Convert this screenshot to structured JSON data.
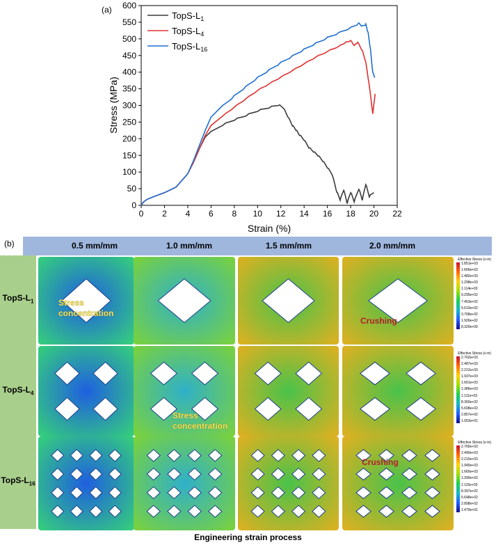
{
  "panel_a_label": "(a)",
  "panel_b_label": "(b)",
  "chart_data": {
    "type": "line",
    "title": "",
    "xlabel": "Strain (%)",
    "ylabel": "Stress (MPa)",
    "xlim": [
      0,
      22
    ],
    "ylim": [
      0,
      600
    ],
    "xticks": [
      0,
      2,
      4,
      6,
      8,
      10,
      12,
      14,
      16,
      18,
      20,
      22
    ],
    "yticks": [
      0,
      50,
      100,
      150,
      200,
      250,
      300,
      350,
      400,
      450,
      500,
      550,
      600
    ],
    "grid": false,
    "legend_position": "top-left",
    "series": [
      {
        "name": "TopS-L1",
        "legend_base": "TopS-L",
        "legend_sub": "1",
        "color": "#3a3a3a",
        "points": [
          [
            0,
            0
          ],
          [
            0.2,
            10
          ],
          [
            0.5,
            18
          ],
          [
            1,
            25
          ],
          [
            2,
            38
          ],
          [
            3,
            55
          ],
          [
            4,
            95
          ],
          [
            4.5,
            130
          ],
          [
            5,
            170
          ],
          [
            5.5,
            205
          ],
          [
            6,
            222
          ],
          [
            7,
            240
          ],
          [
            8,
            255
          ],
          [
            9,
            268
          ],
          [
            10,
            282
          ],
          [
            11,
            292
          ],
          [
            11.8,
            300
          ],
          [
            12.2,
            292
          ],
          [
            12.6,
            265
          ],
          [
            13,
            238
          ],
          [
            13.3,
            225
          ],
          [
            13.6,
            210
          ],
          [
            14,
            195
          ],
          [
            14.4,
            172
          ],
          [
            14.8,
            160
          ],
          [
            15.2,
            148
          ],
          [
            15.6,
            132
          ],
          [
            16,
            112
          ],
          [
            16.4,
            92
          ],
          [
            16.8,
            40
          ],
          [
            17.1,
            15
          ],
          [
            17.4,
            45
          ],
          [
            17.7,
            5
          ],
          [
            18,
            38
          ],
          [
            18.3,
            10
          ],
          [
            18.7,
            48
          ],
          [
            19,
            15
          ],
          [
            19.3,
            62
          ],
          [
            19.6,
            25
          ],
          [
            20,
            38
          ]
        ]
      },
      {
        "name": "TopS-L4",
        "legend_base": "TopS-L",
        "legend_sub": "4",
        "color": "#e03030",
        "points": [
          [
            0,
            0
          ],
          [
            0.2,
            10
          ],
          [
            0.5,
            18
          ],
          [
            1,
            25
          ],
          [
            2,
            38
          ],
          [
            3,
            55
          ],
          [
            4,
            95
          ],
          [
            4.5,
            130
          ],
          [
            5,
            170
          ],
          [
            5.5,
            210
          ],
          [
            6,
            240
          ],
          [
            7,
            268
          ],
          [
            8,
            295
          ],
          [
            9,
            320
          ],
          [
            10,
            345
          ],
          [
            11,
            365
          ],
          [
            12,
            385
          ],
          [
            13,
            405
          ],
          [
            14,
            425
          ],
          [
            15,
            445
          ],
          [
            16,
            462
          ],
          [
            17,
            478
          ],
          [
            17.5,
            488
          ],
          [
            18,
            495
          ],
          [
            18.3,
            480
          ],
          [
            18.6,
            490
          ],
          [
            19,
            465
          ],
          [
            19.3,
            430
          ],
          [
            19.6,
            360
          ],
          [
            19.9,
            275
          ],
          [
            20.1,
            335
          ]
        ]
      },
      {
        "name": "TopS-L16",
        "legend_base": "TopS-L",
        "legend_sub": "16",
        "color": "#1f6fd1",
        "points": [
          [
            0,
            0
          ],
          [
            0.2,
            10
          ],
          [
            0.5,
            18
          ],
          [
            1,
            25
          ],
          [
            2,
            38
          ],
          [
            3,
            55
          ],
          [
            4,
            95
          ],
          [
            4.5,
            135
          ],
          [
            5,
            180
          ],
          [
            5.5,
            225
          ],
          [
            6,
            265
          ],
          [
            7,
            300
          ],
          [
            8,
            330
          ],
          [
            9,
            358
          ],
          [
            10,
            385
          ],
          [
            11,
            408
          ],
          [
            12,
            430
          ],
          [
            13,
            450
          ],
          [
            14,
            470
          ],
          [
            15,
            488
          ],
          [
            16,
            505
          ],
          [
            17,
            520
          ],
          [
            18,
            535
          ],
          [
            18.7,
            548
          ],
          [
            19,
            540
          ],
          [
            19.3,
            545
          ],
          [
            19.5,
            520
          ],
          [
            19.7,
            470
          ],
          [
            19.9,
            400
          ],
          [
            20.1,
            385
          ]
        ]
      }
    ]
  },
  "panel_b": {
    "columns": [
      "0.5 mm/mm",
      "1.0 mm/mm",
      "1.5 mm/mm",
      "2.0 mm/mm"
    ],
    "rows": [
      {
        "label_base": "TopS-L",
        "label_sub": "1",
        "grid_n": 1
      },
      {
        "label_base": "TopS-L",
        "label_sub": "4",
        "grid_n": 2
      },
      {
        "label_base": "TopS-L",
        "label_sub": "16",
        "grid_n": 4
      }
    ],
    "legends": [
      {
        "title": "Effective Stress (v-m)",
        "ticks": [
          "1.851e+03",
          "1.666e+03",
          "1.482e+03",
          "1.298e+03",
          "1.114e+03",
          "9.295e+02",
          "7.453e+02",
          "5.610e+02",
          "3.768e+02",
          "1.926e+02",
          "8.320e+00"
        ]
      },
      {
        "title": "Effective Stress (v-m)",
        "ticks": [
          "2.762e+03",
          "2.487e+03",
          "2.212e+03",
          "1.937e+03",
          "1.661e+03",
          "1.386e+03",
          "1.111e+03",
          "8.360e+02",
          "5.608e+02",
          "2.857e+02",
          "1.053e+01"
        ]
      },
      {
        "title": "Effective Stress (v-m)",
        "ticks": [
          "2.765e+03",
          "2.490e+03",
          "2.215e+03",
          "1.940e+03",
          "1.665e+03",
          "1.390e+03",
          "1.115e+03",
          "8.397e+02",
          "5.648e+02",
          "2.898e+02",
          "1.479e+01"
        ]
      }
    ],
    "annotations": {
      "stress_concentration_1": "Stress\nconcentration",
      "crushing_1": "Crushing",
      "stress_concentration_2": "Stress\nconcentration",
      "crushing_2": "Crushing"
    },
    "footer": "Engineering strain process"
  }
}
